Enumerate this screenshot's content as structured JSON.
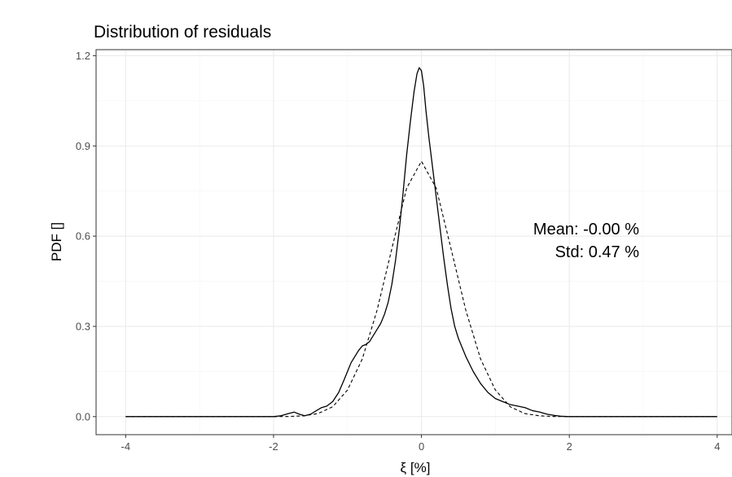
{
  "chart_data": {
    "type": "line",
    "title": "Distribution of residuals",
    "xlabel": "ξ [%]",
    "ylabel": "PDF []",
    "xlim": [
      -4.4,
      4.2
    ],
    "ylim": [
      -0.06,
      1.22
    ],
    "xticks": [
      -4,
      -2,
      0,
      2,
      4
    ],
    "xtick_labels": [
      "-4",
      "-2",
      "0",
      "2",
      "4"
    ],
    "yticks": [
      0.0,
      0.3,
      0.6,
      0.9,
      1.2
    ],
    "ytick_labels": [
      "0.0",
      "0.3",
      "0.6",
      "0.9",
      "1.2"
    ],
    "grid": true,
    "annotations": [
      "Mean: -0.00 %",
      "Std: 0.47 %"
    ],
    "series": [
      {
        "line_style": "solid",
        "x": [
          -4.0,
          -2.0,
          -1.9,
          -1.8,
          -1.72,
          -1.65,
          -1.58,
          -1.5,
          -1.42,
          -1.35,
          -1.28,
          -1.2,
          -1.12,
          -1.05,
          -1.0,
          -0.95,
          -0.9,
          -0.85,
          -0.8,
          -0.75,
          -0.7,
          -0.65,
          -0.6,
          -0.55,
          -0.5,
          -0.45,
          -0.4,
          -0.35,
          -0.3,
          -0.25,
          -0.2,
          -0.15,
          -0.1,
          -0.06,
          -0.03,
          0.0,
          0.03,
          0.06,
          0.1,
          0.15,
          0.2,
          0.25,
          0.3,
          0.35,
          0.4,
          0.45,
          0.5,
          0.6,
          0.7,
          0.8,
          0.9,
          1.0,
          1.1,
          1.2,
          1.3,
          1.4,
          1.5,
          1.6,
          1.7,
          1.8,
          1.9,
          2.0,
          4.0
        ],
        "y": [
          0.0,
          0.0,
          0.003,
          0.01,
          0.015,
          0.008,
          0.003,
          0.008,
          0.02,
          0.03,
          0.035,
          0.05,
          0.08,
          0.12,
          0.15,
          0.18,
          0.2,
          0.22,
          0.235,
          0.24,
          0.25,
          0.27,
          0.29,
          0.31,
          0.34,
          0.38,
          0.44,
          0.52,
          0.62,
          0.74,
          0.87,
          0.98,
          1.08,
          1.14,
          1.16,
          1.15,
          1.1,
          1.02,
          0.93,
          0.83,
          0.73,
          0.63,
          0.53,
          0.44,
          0.36,
          0.3,
          0.26,
          0.2,
          0.15,
          0.11,
          0.08,
          0.06,
          0.05,
          0.04,
          0.035,
          0.03,
          0.02,
          0.015,
          0.008,
          0.004,
          0.001,
          0.0,
          0.0
        ]
      },
      {
        "line_style": "dashed",
        "x": [
          -4.0,
          -2.0,
          -1.8,
          -1.6,
          -1.4,
          -1.2,
          -1.0,
          -0.8,
          -0.6,
          -0.4,
          -0.2,
          0.0,
          0.2,
          0.4,
          0.6,
          0.8,
          1.0,
          1.2,
          1.4,
          1.6,
          1.8,
          2.0,
          4.0
        ],
        "y": [
          0.0,
          0.0,
          0.0005,
          0.0025,
          0.0101,
          0.0329,
          0.0884,
          0.1916,
          0.3537,
          0.5585,
          0.7596,
          0.849,
          0.7596,
          0.5585,
          0.3537,
          0.1916,
          0.0884,
          0.0329,
          0.0101,
          0.0025,
          0.0005,
          0.0,
          0.0
        ]
      }
    ]
  }
}
